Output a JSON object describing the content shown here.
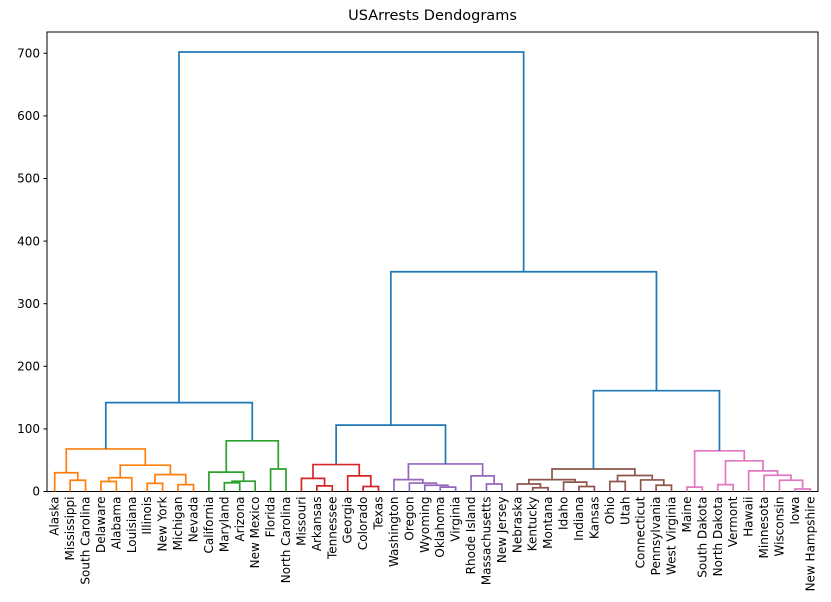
{
  "figure": {
    "title": "USArrests Dendograms"
  },
  "chart_data": {
    "type": "dendrogram",
    "title": "USArrests Dendograms",
    "xlabel": "",
    "ylabel": "",
    "ylim": [
      0,
      734
    ],
    "yticks": [
      0,
      100,
      200,
      300,
      400,
      500,
      600,
      700
    ],
    "grid": false,
    "legend": false,
    "n_leaves": 50,
    "leaf_labels": [
      "Alaska",
      "Mississippi",
      "South Carolina",
      "Delaware",
      "Alabama",
      "Louisiana",
      "Illinois",
      "New York",
      "Michigan",
      "Nevada",
      "California",
      "Maryland",
      "Arizona",
      "New Mexico",
      "Florida",
      "North Carolina",
      "Missouri",
      "Arkansas",
      "Tennessee",
      "Georgia",
      "Colorado",
      "Texas",
      "Washington",
      "Oregon",
      "Wyoming",
      "Oklahoma",
      "Virginia",
      "Rhode Island",
      "Massachusetts",
      "New Jersey",
      "Nebraska",
      "Kentucky",
      "Montana",
      "Idaho",
      "Indiana",
      "Kansas",
      "Ohio",
      "Utah",
      "Connecticut",
      "Pennsylvania",
      "West Virginia",
      "Maine",
      "South Dakota",
      "North Dakota",
      "Vermont",
      "Hawaii",
      "Minnesota",
      "Wisconsin",
      "Iowa",
      "New Hampshire"
    ],
    "link_palette": {
      "b": "#1f77b4",
      "o": "#ff7f0e",
      "g": "#2ca02c",
      "r": "#d62728",
      "p": "#9467bd",
      "n": "#8c564b",
      "k": "#e377c2"
    },
    "tree": [
      "b",
      702,
      [
        "b",
        142,
        [
          "o",
          68,
          [
            "o",
            30,
            "Alaska",
            [
              "o",
              18,
              "Mississippi",
              "South Carolina"
            ]
          ],
          [
            "o",
            42,
            [
              "o",
              22,
              [
                "o",
                16,
                "Delaware",
                "Alabama"
              ],
              "Louisiana"
            ],
            [
              "o",
              27,
              [
                "o",
                13,
                "Illinois",
                "New York"
              ],
              [
                "o",
                11,
                "Michigan",
                "Nevada"
              ]
            ]
          ]
        ],
        [
          "g",
          81,
          [
            "g",
            31,
            "California",
            [
              "g",
              16.5,
              [
                "g",
                14,
                "Maryland",
                "Arizona"
              ],
              "New Mexico"
            ]
          ],
          [
            "g",
            36,
            "Florida",
            "North Carolina"
          ]
        ]
      ],
      [
        "b",
        351,
        [
          "b",
          106,
          [
            "r",
            43,
            [
              "r",
              21,
              "Missouri",
              [
                "r",
                9,
                "Arkansas",
                "Tennessee"
              ]
            ],
            [
              "r",
              25,
              "Georgia",
              [
                "r",
                8,
                "Colorado",
                "Texas"
              ]
            ]
          ],
          [
            "p",
            44,
            [
              "p",
              19,
              "Washington",
              [
                "p",
                13.5,
                "Oregon",
                [
                  "p",
                  10,
                  "Wyoming",
                  [
                    "p",
                    7,
                    "Oklahoma",
                    "Virginia"
                  ]
                ]
              ]
            ],
            [
              "p",
              25,
              "Rhode Island",
              [
                "p",
                12,
                "Massachusetts",
                "New Jersey"
              ]
            ]
          ]
        ],
        [
          "b",
          161,
          [
            "n",
            36,
            [
              "n",
              19,
              [
                "n",
                12,
                "Nebraska",
                [
                  "n",
                  6,
                  "Kentucky",
                  "Montana"
                ]
              ],
              [
                "n",
                15,
                "Idaho",
                [
                  "n",
                  8,
                  "Indiana",
                  "Kansas"
                ]
              ]
            ],
            [
              "n",
              25.5,
              [
                "n",
                16,
                "Ohio",
                "Utah"
              ],
              [
                "n",
                18.5,
                "Connecticut",
                [
                  "n",
                  10,
                  "Pennsylvania",
                  "West Virginia"
                ]
              ]
            ]
          ],
          [
            "k",
            65,
            [
              "k",
              7,
              "Maine",
              "South Dakota"
            ],
            [
              "k",
              49,
              [
                "k",
                11,
                "North Dakota",
                "Vermont"
              ],
              [
                "k",
                33,
                "Hawaii",
                [
                  "k",
                  26,
                  "Minnesota",
                  [
                    "k",
                    18,
                    "Wisconsin",
                    [
                      "k",
                      4,
                      "Iowa",
                      "New Hampshire"
                    ]
                  ]
                ]
              ]
            ]
          ]
        ]
      ]
    ]
  }
}
